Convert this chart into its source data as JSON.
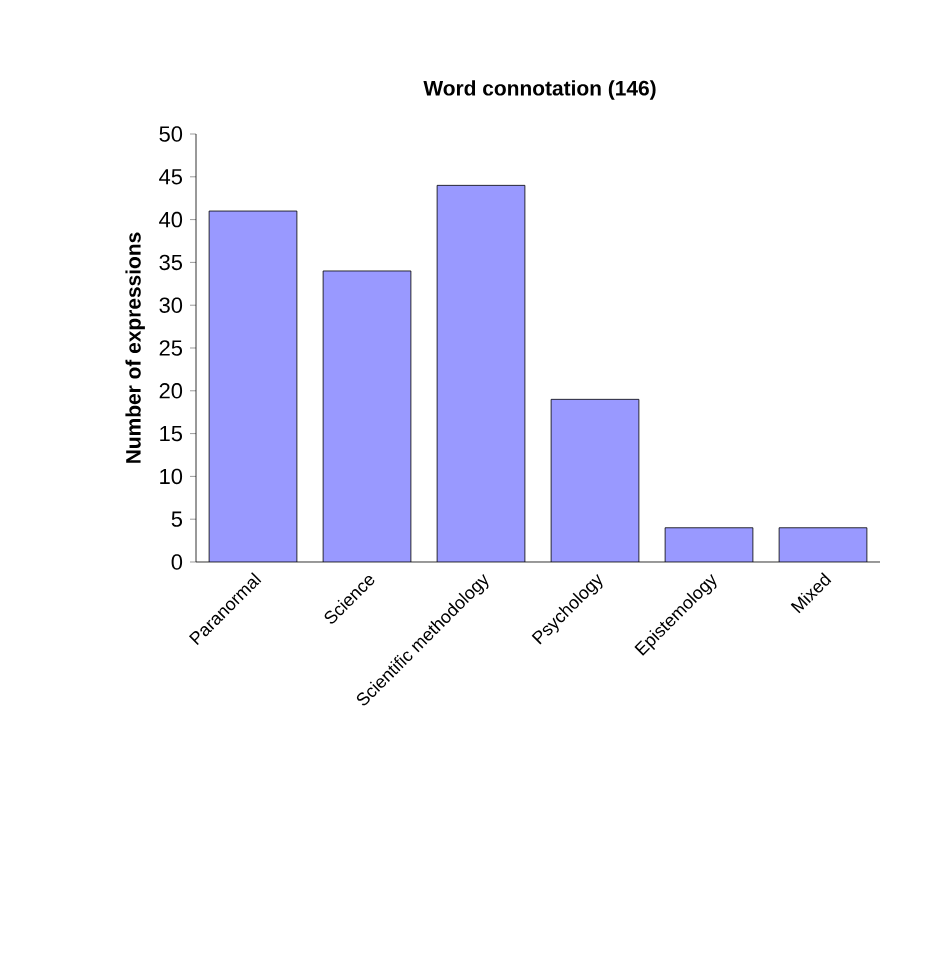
{
  "chart_data": {
    "type": "bar",
    "title": "Word connotation (146)",
    "ylabel": "Number of expressions",
    "categories": [
      "Paranormal",
      "Science",
      "Scientific methodology",
      "Psychology",
      "Epistemology",
      "Mixed"
    ],
    "values": [
      41,
      34,
      44,
      19,
      4,
      4
    ],
    "color": "#9999ff",
    "ylim": [
      0,
      50
    ],
    "yticks": [
      0,
      5,
      10,
      15,
      20,
      25,
      30,
      35,
      40,
      45,
      50
    ],
    "grid": false
  }
}
